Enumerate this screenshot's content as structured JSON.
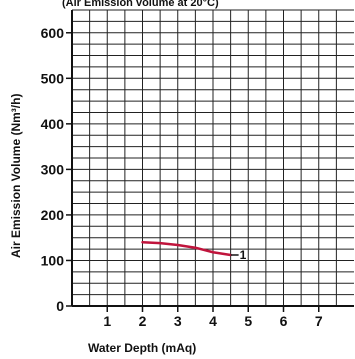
{
  "chart_data": {
    "type": "line",
    "subtitle": "(Air Emission volume at 20°C)",
    "xlabel": "Water Depth (mAq)",
    "ylabel": "Air Emission Volume (Nm³/h)",
    "xlim": [
      0,
      8
    ],
    "ylim": [
      0,
      650
    ],
    "xticks": [
      "1",
      "2",
      "3",
      "4",
      "5",
      "6",
      "7"
    ],
    "xtick_values": [
      1,
      2,
      3,
      4,
      5,
      6,
      7
    ],
    "yticks": [
      "0",
      "100",
      "200",
      "300",
      "400",
      "500",
      "600"
    ],
    "ytick_values": [
      0,
      100,
      200,
      300,
      400,
      500,
      600
    ],
    "grid": true,
    "series": [
      {
        "name": "1",
        "color": "#c0143c",
        "x": [
          2.0,
          2.5,
          3.0,
          3.5,
          4.0,
          4.5
        ],
        "y": [
          140,
          138,
          134,
          128,
          118,
          112
        ]
      }
    ]
  }
}
